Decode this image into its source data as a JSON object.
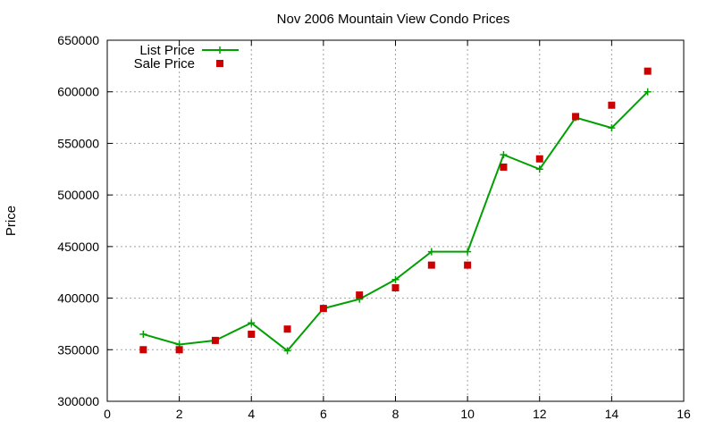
{
  "chart_data": {
    "type": "line",
    "title": "Nov 2006 Mountain View Condo Prices",
    "xlabel": "",
    "ylabel": "Price",
    "xlim": [
      0,
      16
    ],
    "ylim": [
      300000,
      650000
    ],
    "x_ticks": [
      "0",
      "2",
      "4",
      "6",
      "8",
      "10",
      "12",
      "14",
      "16"
    ],
    "y_ticks": [
      "300000",
      "350000",
      "400000",
      "450000",
      "500000",
      "550000",
      "600000",
      "650000"
    ],
    "grid": true,
    "legend_position": "top-left",
    "series": [
      {
        "name": "List Price",
        "style": "line-with-plus-markers",
        "color": "#00a000",
        "x": [
          1,
          2,
          3,
          4,
          5,
          6,
          7,
          8,
          9,
          10,
          11,
          12,
          13,
          14,
          15
        ],
        "y": [
          365000,
          355000,
          359000,
          376000,
          349000,
          390000,
          399000,
          418000,
          445000,
          445000,
          539000,
          525000,
          575000,
          565000,
          600000
        ]
      },
      {
        "name": "Sale Price",
        "style": "square-markers",
        "color": "#cc0000",
        "x": [
          1,
          2,
          3,
          4,
          5,
          6,
          7,
          8,
          9,
          10,
          11,
          12,
          13,
          14,
          15
        ],
        "y": [
          350000,
          350000,
          359000,
          365000,
          370000,
          390000,
          403000,
          410000,
          432000,
          432000,
          527000,
          535000,
          576000,
          587000,
          620000
        ]
      }
    ]
  }
}
